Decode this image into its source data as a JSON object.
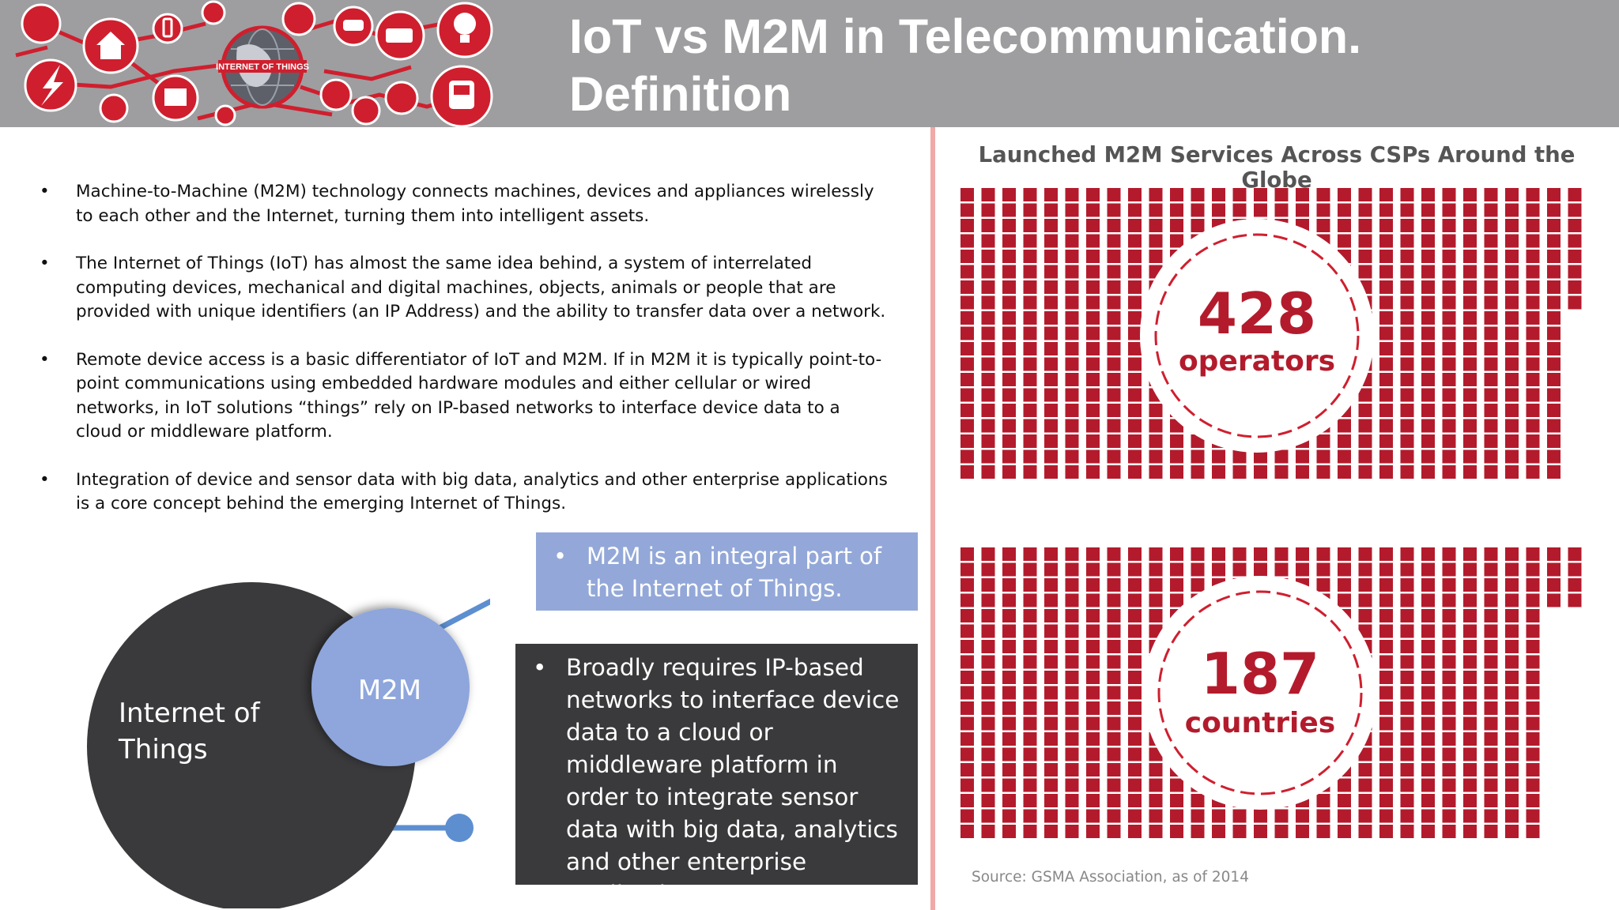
{
  "header": {
    "title": "IoT vs M2M in Telecommunication. Definition",
    "banner_label": "INTERNET OF THINGS"
  },
  "bullets": [
    "Machine-to-Machine (M2M) technology connects machines, devices and appliances wirelessly to each other and the Internet, turning them into intelligent assets.",
    "The Internet of Things (IoT) has almost the same idea behind, a system of interrelated computing devices, mechanical and digital machines, objects, animals or people that are provided with unique identifiers (an IP Address) and the ability to transfer data over a network.",
    "Remote device access is a basic differentiator of IoT and M2M. If in M2M it is typically point-to-point communications using embedded hardware modules and either cellular or wired networks, in IoT solutions “things” rely on IP-based networks to interface device data to a cloud or middleware platform.",
    "Integration of device and sensor data with big data, analytics and other enterprise applications is a core concept behind the emerging Internet of Things."
  ],
  "bullet_marker": "•",
  "venn": {
    "outer_label": "Internet of Things",
    "inner_label": "M2M",
    "outer_color": "#3a3a3c",
    "inner_color": "#8ea6dc",
    "connector_color": "#5d8fd0"
  },
  "callouts": {
    "blue": "M2M is an integral part of the Internet of Things.",
    "dark": "Broadly requires IP-based networks to interface device data to a cloud or middleware platform in order to integrate sensor data with big data, analytics and other enterprise applications"
  },
  "stats": {
    "heading": "Launched M2M Services Across CSPs Around the Globe",
    "operators": {
      "value": "428",
      "unit": "operators"
    },
    "countries": {
      "value": "187",
      "unit": "countries"
    },
    "source": "Source: GSMA Association, as of 2014",
    "accent_color": "#b31b2c"
  },
  "colors": {
    "header_bg": "#9e9ea0",
    "banner_red": "#cf1f2e",
    "divider": "#f0a8a8"
  },
  "icons": [
    "heart-monitor-icon",
    "home-icon",
    "phone-icon",
    "person-icon",
    "plane-icon",
    "car-icon",
    "truck-icon",
    "lightbulb-icon",
    "lightning-icon",
    "chip-icon",
    "factory-icon",
    "cart-icon",
    "gauge-icon",
    "recycle-icon",
    "faucet-icon",
    "bus-icon",
    "globe-icon"
  ]
}
